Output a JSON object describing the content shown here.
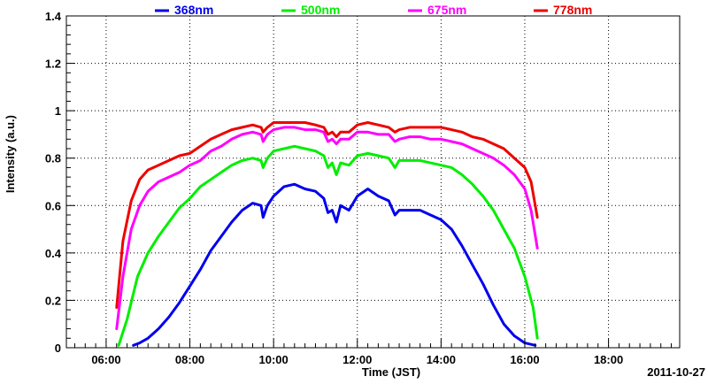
{
  "chart_data": {
    "type": "line",
    "title": "",
    "xlabel": "Time (JST)",
    "ylabel": "Intensity (a.u.)",
    "date_label": "2011-10-27",
    "xlim": [
      5.05,
      19.7
    ],
    "ylim": [
      0,
      1.4
    ],
    "x_ticks": [
      {
        "value": 6,
        "label": "06:00"
      },
      {
        "value": 8,
        "label": "08:00"
      },
      {
        "value": 10,
        "label": "10:00"
      },
      {
        "value": 12,
        "label": "12:00"
      },
      {
        "value": 14,
        "label": "14:00"
      },
      {
        "value": 16,
        "label": "16:00"
      },
      {
        "value": 18,
        "label": "18:00"
      }
    ],
    "y_ticks": [
      {
        "value": 0,
        "label": "0"
      },
      {
        "value": 0.2,
        "label": "0.2"
      },
      {
        "value": 0.4,
        "label": "0.4"
      },
      {
        "value": 0.6,
        "label": "0.6"
      },
      {
        "value": 0.8,
        "label": "0.8"
      },
      {
        "value": 1.0,
        "label": "1"
      },
      {
        "value": 1.2,
        "label": "1.2"
      },
      {
        "value": 1.4,
        "label": "1.4"
      }
    ],
    "grid": true,
    "legend_position": "top",
    "series": [
      {
        "name": "368nm",
        "color": "#0000ee",
        "x": [
          6.65,
          6.8,
          7.0,
          7.25,
          7.5,
          7.75,
          8.0,
          8.25,
          8.5,
          8.75,
          9.0,
          9.25,
          9.5,
          9.7,
          9.75,
          9.85,
          10.0,
          10.25,
          10.5,
          10.75,
          11.0,
          11.2,
          11.3,
          11.4,
          11.5,
          11.6,
          11.8,
          12.0,
          12.25,
          12.5,
          12.75,
          12.9,
          13.0,
          13.25,
          13.5,
          13.75,
          14.0,
          14.25,
          14.5,
          14.75,
          15.0,
          15.25,
          15.5,
          15.75,
          16.0,
          16.25
        ],
        "y": [
          0.01,
          0.02,
          0.04,
          0.08,
          0.13,
          0.19,
          0.26,
          0.33,
          0.41,
          0.47,
          0.53,
          0.58,
          0.61,
          0.6,
          0.55,
          0.6,
          0.64,
          0.68,
          0.69,
          0.67,
          0.66,
          0.63,
          0.57,
          0.58,
          0.53,
          0.6,
          0.58,
          0.64,
          0.67,
          0.64,
          0.62,
          0.56,
          0.58,
          0.58,
          0.58,
          0.56,
          0.54,
          0.5,
          0.43,
          0.35,
          0.27,
          0.18,
          0.1,
          0.05,
          0.02,
          0.01
        ]
      },
      {
        "name": "500nm",
        "color": "#00ee00",
        "x": [
          6.3,
          6.5,
          6.75,
          7.0,
          7.25,
          7.5,
          7.75,
          8.0,
          8.25,
          8.5,
          8.75,
          9.0,
          9.25,
          9.5,
          9.7,
          9.75,
          9.85,
          10.0,
          10.25,
          10.5,
          10.75,
          11.0,
          11.2,
          11.3,
          11.4,
          11.5,
          11.6,
          11.8,
          12.0,
          12.25,
          12.5,
          12.75,
          12.9,
          13.0,
          13.25,
          13.5,
          13.75,
          14.0,
          14.25,
          14.5,
          14.75,
          15.0,
          15.25,
          15.5,
          15.75,
          16.0,
          16.2,
          16.3
        ],
        "y": [
          0.01,
          0.12,
          0.3,
          0.4,
          0.47,
          0.53,
          0.59,
          0.63,
          0.68,
          0.71,
          0.74,
          0.77,
          0.79,
          0.8,
          0.79,
          0.76,
          0.8,
          0.83,
          0.84,
          0.85,
          0.84,
          0.83,
          0.81,
          0.76,
          0.78,
          0.73,
          0.78,
          0.77,
          0.81,
          0.82,
          0.81,
          0.8,
          0.76,
          0.79,
          0.79,
          0.79,
          0.78,
          0.77,
          0.76,
          0.73,
          0.69,
          0.64,
          0.58,
          0.5,
          0.42,
          0.3,
          0.17,
          0.04
        ]
      },
      {
        "name": "675nm",
        "color": "#ff00ff",
        "x": [
          6.25,
          6.4,
          6.6,
          6.8,
          7.0,
          7.25,
          7.5,
          7.75,
          8.0,
          8.25,
          8.5,
          8.75,
          9.0,
          9.25,
          9.5,
          9.7,
          9.75,
          9.85,
          10.0,
          10.25,
          10.5,
          10.75,
          11.0,
          11.2,
          11.3,
          11.4,
          11.5,
          11.6,
          11.8,
          12.0,
          12.25,
          12.5,
          12.75,
          12.9,
          13.0,
          13.25,
          13.5,
          13.75,
          14.0,
          14.25,
          14.5,
          14.75,
          15.0,
          15.25,
          15.5,
          15.75,
          16.0,
          16.15,
          16.3
        ],
        "y": [
          0.08,
          0.3,
          0.5,
          0.6,
          0.66,
          0.7,
          0.72,
          0.74,
          0.77,
          0.79,
          0.83,
          0.85,
          0.88,
          0.9,
          0.91,
          0.9,
          0.87,
          0.9,
          0.92,
          0.93,
          0.93,
          0.92,
          0.92,
          0.91,
          0.87,
          0.88,
          0.86,
          0.88,
          0.88,
          0.91,
          0.91,
          0.9,
          0.9,
          0.87,
          0.88,
          0.89,
          0.89,
          0.88,
          0.88,
          0.87,
          0.86,
          0.84,
          0.82,
          0.8,
          0.77,
          0.73,
          0.67,
          0.58,
          0.42
        ]
      },
      {
        "name": "778nm",
        "color": "#ee0000",
        "x": [
          6.25,
          6.4,
          6.6,
          6.8,
          7.0,
          7.25,
          7.5,
          7.75,
          8.0,
          8.25,
          8.5,
          8.75,
          9.0,
          9.25,
          9.5,
          9.7,
          9.75,
          9.85,
          10.0,
          10.25,
          10.5,
          10.75,
          11.0,
          11.2,
          11.3,
          11.4,
          11.5,
          11.6,
          11.8,
          12.0,
          12.25,
          12.5,
          12.75,
          12.9,
          13.0,
          13.25,
          13.5,
          13.75,
          14.0,
          14.25,
          14.5,
          14.75,
          15.0,
          15.25,
          15.5,
          15.75,
          16.0,
          16.15,
          16.3
        ],
        "y": [
          0.17,
          0.45,
          0.62,
          0.71,
          0.75,
          0.77,
          0.79,
          0.81,
          0.82,
          0.85,
          0.88,
          0.9,
          0.92,
          0.93,
          0.94,
          0.93,
          0.91,
          0.93,
          0.95,
          0.95,
          0.95,
          0.95,
          0.94,
          0.93,
          0.9,
          0.91,
          0.89,
          0.91,
          0.91,
          0.94,
          0.95,
          0.94,
          0.93,
          0.91,
          0.92,
          0.93,
          0.93,
          0.93,
          0.93,
          0.92,
          0.91,
          0.89,
          0.88,
          0.86,
          0.84,
          0.8,
          0.76,
          0.7,
          0.55
        ]
      }
    ]
  }
}
